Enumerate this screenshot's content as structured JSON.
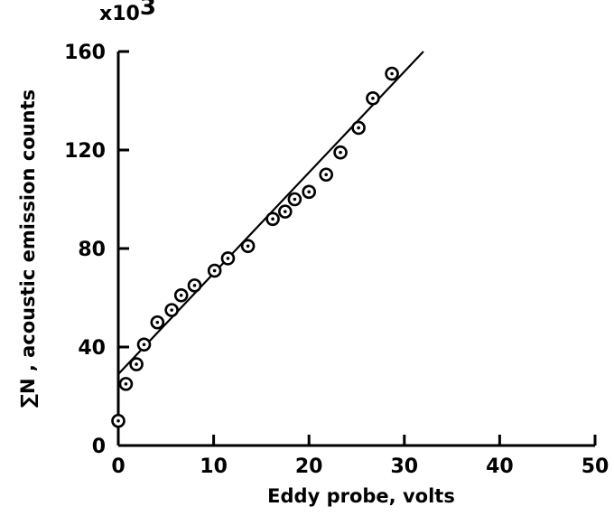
{
  "chart_data": {
    "type": "scatter",
    "xlabel": "Eddy probe, volts",
    "ylabel": "∑N , acoustic emission counts",
    "y_multiplier": "x10",
    "y_multiplier_exp": "3",
    "xlim": [
      0,
      50
    ],
    "ylim": [
      0,
      160
    ],
    "xticks": [
      0,
      10,
      20,
      30,
      40,
      50
    ],
    "yticks": [
      0,
      40,
      80,
      120,
      160
    ],
    "grid": false,
    "series": [
      {
        "marker": "circle-dot",
        "x": [
          0.0,
          0.8,
          1.9,
          2.7,
          4.1,
          5.6,
          6.6,
          8.0,
          10.1,
          11.5,
          13.6,
          16.2,
          17.5,
          18.5,
          20.0,
          21.8,
          23.3,
          25.2,
          26.7,
          28.7
        ],
        "y": [
          10,
          25,
          33,
          41,
          50,
          55,
          61,
          65,
          71,
          76,
          81,
          92,
          95,
          100,
          103,
          110,
          119,
          129,
          141,
          151
        ]
      }
    ],
    "fit_line": {
      "x": [
        0,
        32
      ],
      "y": [
        29,
        160
      ]
    },
    "colors": {
      "marks": "#000000",
      "background": "#ffffff"
    }
  }
}
